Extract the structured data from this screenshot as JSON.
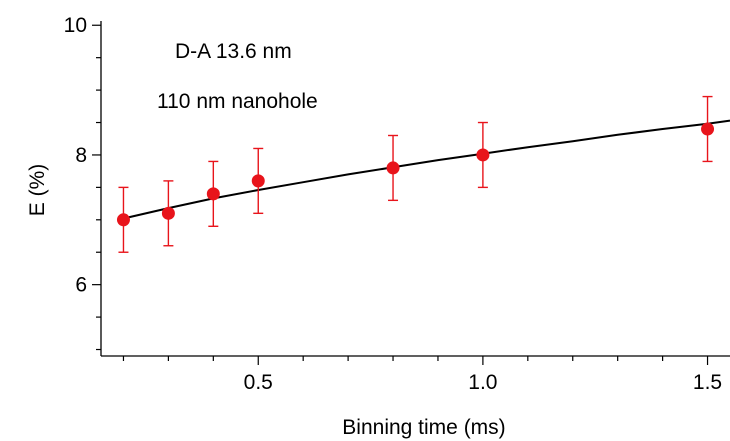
{
  "chart_data": {
    "type": "scatter",
    "xlabel": "Binning time (ms)",
    "ylabel": "E (%)",
    "xlim": [
      0.15,
      1.55
    ],
    "ylim": [
      4.9,
      10.05
    ],
    "x_ticks": [
      {
        "value": 0.5,
        "label": "0.5"
      },
      {
        "value": 1.0,
        "label": "1.0"
      },
      {
        "value": 1.5,
        "label": "1.5"
      }
    ],
    "y_ticks": [
      {
        "value": 6,
        "label": "6"
      },
      {
        "value": 8,
        "label": "8"
      },
      {
        "value": 10,
        "label": "10"
      }
    ],
    "annotations": [
      "D-A 13.6 nm",
      "110 nm nanohole"
    ],
    "series": [
      {
        "type": "scatter",
        "color": "#e8141b",
        "x": [
          0.2,
          0.3,
          0.4,
          0.5,
          0.8,
          1.0,
          1.5
        ],
        "y": [
          7.0,
          7.1,
          7.4,
          7.6,
          7.8,
          8.0,
          8.4
        ],
        "error": [
          0.5,
          0.5,
          0.5,
          0.5,
          0.5,
          0.5,
          0.5
        ]
      },
      {
        "type": "line",
        "color": "#000000",
        "x": [
          0.2,
          0.3,
          0.4,
          0.5,
          0.6,
          0.7,
          0.8,
          0.9,
          1.0,
          1.1,
          1.2,
          1.3,
          1.4,
          1.5,
          1.55
        ],
        "y": [
          7.02,
          7.18,
          7.33,
          7.46,
          7.58,
          7.7,
          7.81,
          7.92,
          8.02,
          8.12,
          8.21,
          8.31,
          8.4,
          8.48,
          8.53
        ]
      }
    ]
  }
}
